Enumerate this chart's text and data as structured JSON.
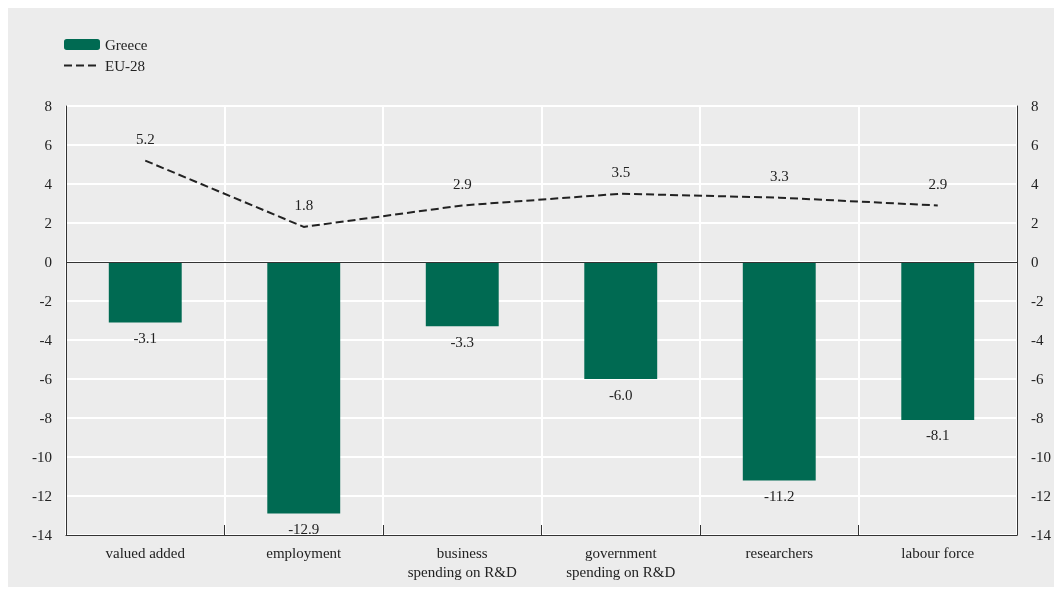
{
  "chart_data": {
    "type": "bar",
    "categories": [
      "valued added",
      "employment",
      "business spending on R&D",
      "government spending on R&D",
      "researchers",
      "labour force"
    ],
    "series": [
      {
        "name": "Greece",
        "color": "#006a52",
        "values": [
          -3.1,
          -12.9,
          -3.3,
          -6.0,
          -11.2,
          -8.1
        ],
        "value_labels": [
          "-3.1",
          "-12.9",
          "-3.3",
          "-6.0",
          "-11.2",
          "-8.1"
        ]
      },
      {
        "name": "EU-28",
        "type": "line",
        "color": "#222222",
        "line_style": "dashed",
        "marker": "none",
        "values": [
          5.2,
          1.8,
          2.9,
          3.5,
          3.3,
          2.9
        ],
        "value_labels": [
          "5.2",
          "1.8",
          "2.9",
          "3.5",
          "3.3",
          "2.9"
        ]
      }
    ],
    "ylim": [
      -14,
      8
    ],
    "yticks": [
      -14,
      -12,
      -10,
      -8,
      -6,
      -4,
      -2,
      0,
      2,
      4,
      6,
      8
    ],
    "y2lim": [
      -14,
      8
    ],
    "y2ticks": [
      -14,
      -12,
      -10,
      -8,
      -6,
      -4,
      -2,
      0,
      2,
      4,
      6,
      8
    ],
    "ref_lines": [
      {
        "axis": "y",
        "value": 0,
        "color": "#333333"
      }
    ],
    "grid": true,
    "legend": "top left"
  }
}
